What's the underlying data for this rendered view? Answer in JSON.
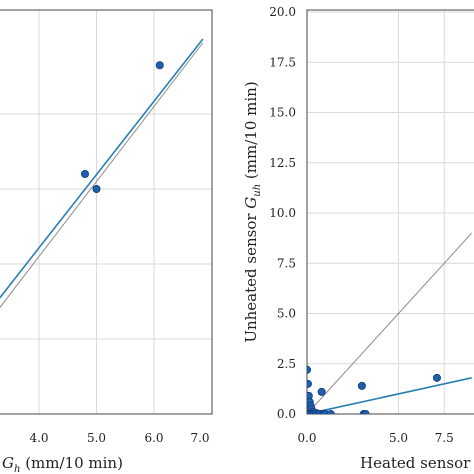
{
  "colors": {
    "marker": "#1f5fb0",
    "marker_edge": "#0d3c7a",
    "fit_line": "#2a7fb0",
    "identity_line": "#8c8c8c",
    "grid": "#d9d9d9",
    "axis": "#444444"
  },
  "chart_data": [
    {
      "type": "scatter",
      "xlabel_prefix": "G",
      "xlabel_sub": "h",
      "xlabel_suffix": " (mm/10 min)",
      "ylabel": "",
      "xlim": [
        2.0,
        7.0
      ],
      "ylim": [
        2.0,
        7.0
      ],
      "x_ticks": [
        "4.0",
        "5.0",
        "6.0",
        "7.0"
      ],
      "x_tick_values": [
        4.0,
        5.0,
        6.0,
        7.0
      ],
      "grid": true,
      "points": [
        {
          "x": 4.8,
          "y": 5.2
        },
        {
          "x": 5.0,
          "y": 5.0
        },
        {
          "x": 6.1,
          "y": 6.65
        }
      ],
      "fit_line": {
        "x": [
          2.5,
          6.85
        ],
        "y": [
          2.75,
          7.0
        ]
      },
      "identity_line": {
        "x": [
          2.5,
          6.85
        ],
        "y": [
          2.6,
          6.95
        ]
      }
    },
    {
      "type": "scatter",
      "xlabel": "Heated sensor",
      "ylabel_prefix": "Unheated sensor ",
      "ylabel_var": "G",
      "ylabel_sub": "uh",
      "ylabel_suffix": " (mm/10 min)",
      "xlim": [
        0.0,
        9.0
      ],
      "ylim": [
        0.0,
        20.0
      ],
      "x_ticks": [
        "0.0",
        "5.0",
        "7.5"
      ],
      "x_tick_values": [
        0.0,
        5.0,
        7.5
      ],
      "y_ticks": [
        "0.0",
        "2.5",
        "5.0",
        "7.5",
        "10.0",
        "12.5",
        "15.0",
        "17.5",
        "20.0"
      ],
      "y_tick_values": [
        0.0,
        2.5,
        5.0,
        7.5,
        10.0,
        12.5,
        15.0,
        17.5,
        20.0
      ],
      "grid": true,
      "points": [
        {
          "x": 0.0,
          "y": 2.2
        },
        {
          "x": 0.05,
          "y": 1.5
        },
        {
          "x": 0.1,
          "y": 0.9
        },
        {
          "x": 0.15,
          "y": 0.6
        },
        {
          "x": 0.2,
          "y": 0.4
        },
        {
          "x": 0.25,
          "y": 0.25
        },
        {
          "x": 0.3,
          "y": 0.1
        },
        {
          "x": 0.0,
          "y": 0.0
        },
        {
          "x": 0.1,
          "y": 0.0
        },
        {
          "x": 0.2,
          "y": 0.0
        },
        {
          "x": 0.3,
          "y": 0.0
        },
        {
          "x": 0.4,
          "y": 0.0
        },
        {
          "x": 0.5,
          "y": 0.05
        },
        {
          "x": 0.6,
          "y": 0.0
        },
        {
          "x": 0.7,
          "y": 0.0
        },
        {
          "x": 0.8,
          "y": 1.1
        },
        {
          "x": 0.9,
          "y": 0.0
        },
        {
          "x": 1.0,
          "y": 0.0
        },
        {
          "x": 1.3,
          "y": 0.0
        },
        {
          "x": 3.0,
          "y": 1.4
        },
        {
          "x": 3.1,
          "y": 0.0
        },
        {
          "x": 3.2,
          "y": 0.0
        },
        {
          "x": 7.1,
          "y": 1.8
        }
      ],
      "fit_line": {
        "x": [
          0.0,
          9.0
        ],
        "y": [
          0.0,
          1.8
        ]
      },
      "identity_line": {
        "x": [
          0.0,
          9.0
        ],
        "y": [
          0.0,
          9.0
        ]
      }
    }
  ]
}
